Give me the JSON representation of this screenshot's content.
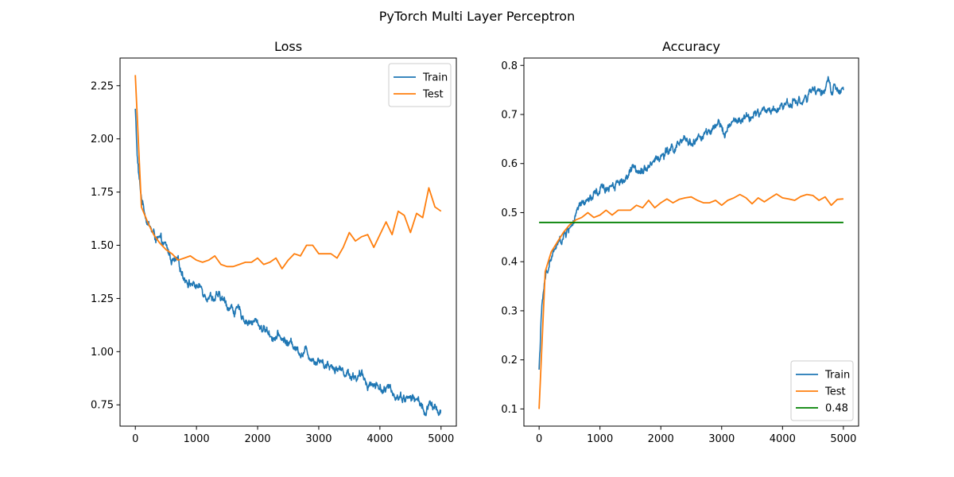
{
  "figure": {
    "suptitle": "PyTorch Multi Layer Perceptron"
  },
  "chart_data": [
    {
      "type": "line",
      "title": "Loss",
      "xlabel": "",
      "ylabel": "",
      "xlim": [
        -250,
        5250
      ],
      "ylim": [
        0.65,
        2.38
      ],
      "xticks": [
        0,
        1000,
        2000,
        3000,
        4000,
        5000
      ],
      "yticks": [
        0.75,
        1.0,
        1.25,
        1.5,
        1.75,
        2.0,
        2.25
      ],
      "ytick_decimals": 2,
      "grid": false,
      "legend": "top-right",
      "series": [
        {
          "name": "Train",
          "color": "#1f77b4",
          "noisy": true,
          "x": [
            0,
            25,
            50,
            75,
            100,
            150,
            200,
            250,
            300,
            400,
            500,
            600,
            700,
            800,
            900,
            1000,
            1100,
            1200,
            1300,
            1400,
            1500,
            1600,
            1700,
            1800,
            1900,
            2000,
            2100,
            2200,
            2300,
            2400,
            2500,
            2600,
            2700,
            2800,
            2900,
            3000,
            3100,
            3200,
            3300,
            3400,
            3500,
            3600,
            3700,
            3800,
            3900,
            4000,
            4100,
            4200,
            4300,
            4400,
            4500,
            4600,
            4700,
            4750,
            4800,
            4900,
            5000
          ],
          "y": [
            2.14,
            1.95,
            1.84,
            1.77,
            1.72,
            1.67,
            1.62,
            1.58,
            1.55,
            1.51,
            1.48,
            1.43,
            1.4,
            1.36,
            1.33,
            1.31,
            1.29,
            1.28,
            1.26,
            1.24,
            1.22,
            1.2,
            1.18,
            1.16,
            1.14,
            1.13,
            1.11,
            1.09,
            1.07,
            1.06,
            1.04,
            1.03,
            1.01,
            1.0,
            0.98,
            0.97,
            0.95,
            0.94,
            0.93,
            0.91,
            0.9,
            0.89,
            0.88,
            0.86,
            0.85,
            0.84,
            0.82,
            0.81,
            0.8,
            0.79,
            0.78,
            0.77,
            0.75,
            0.69,
            0.75,
            0.73,
            0.73
          ]
        },
        {
          "name": "Test",
          "color": "#ff7f0e",
          "noisy": false,
          "x": [
            0,
            100,
            200,
            300,
            400,
            500,
            600,
            700,
            800,
            900,
            1000,
            1100,
            1200,
            1300,
            1400,
            1500,
            1600,
            1700,
            1800,
            1900,
            2000,
            2100,
            2200,
            2300,
            2400,
            2500,
            2600,
            2700,
            2800,
            2900,
            3000,
            3100,
            3200,
            3300,
            3400,
            3500,
            3600,
            3700,
            3800,
            3900,
            4000,
            4100,
            4200,
            4300,
            4400,
            4500,
            4600,
            4700,
            4800,
            4900,
            5000
          ],
          "y": [
            2.3,
            1.68,
            1.61,
            1.55,
            1.51,
            1.48,
            1.46,
            1.43,
            1.44,
            1.45,
            1.43,
            1.42,
            1.43,
            1.45,
            1.41,
            1.4,
            1.4,
            1.41,
            1.42,
            1.42,
            1.44,
            1.41,
            1.42,
            1.44,
            1.39,
            1.43,
            1.46,
            1.45,
            1.5,
            1.5,
            1.46,
            1.46,
            1.46,
            1.44,
            1.49,
            1.56,
            1.52,
            1.54,
            1.55,
            1.49,
            1.55,
            1.61,
            1.55,
            1.66,
            1.64,
            1.56,
            1.65,
            1.63,
            1.77,
            1.68,
            1.66
          ]
        }
      ]
    },
    {
      "type": "line",
      "title": "Accuracy",
      "xlabel": "",
      "ylabel": "",
      "xlim": [
        -250,
        5250
      ],
      "ylim": [
        0.065,
        0.815
      ],
      "xticks": [
        0,
        1000,
        2000,
        3000,
        4000,
        5000
      ],
      "yticks": [
        0.1,
        0.2,
        0.3,
        0.4,
        0.5,
        0.6,
        0.7,
        0.8
      ],
      "ytick_decimals": 1,
      "grid": false,
      "legend": "bottom-right",
      "series": [
        {
          "name": "Train",
          "color": "#1f77b4",
          "noisy": true,
          "x": [
            0,
            25,
            50,
            75,
            100,
            150,
            200,
            250,
            300,
            400,
            500,
            600,
            700,
            800,
            900,
            1000,
            1100,
            1200,
            1300,
            1400,
            1500,
            1600,
            1700,
            1800,
            1900,
            2000,
            2100,
            2200,
            2300,
            2400,
            2500,
            2600,
            2700,
            2800,
            2900,
            3000,
            3100,
            3200,
            3300,
            3400,
            3500,
            3600,
            3700,
            3800,
            3900,
            4000,
            4100,
            4200,
            4300,
            4400,
            4500,
            4600,
            4700,
            4750,
            4800,
            4900,
            5000
          ],
          "y": [
            0.18,
            0.26,
            0.31,
            0.34,
            0.36,
            0.39,
            0.41,
            0.42,
            0.43,
            0.45,
            0.47,
            0.49,
            0.51,
            0.52,
            0.53,
            0.54,
            0.55,
            0.56,
            0.565,
            0.57,
            0.58,
            0.59,
            0.595,
            0.6,
            0.61,
            0.615,
            0.62,
            0.63,
            0.635,
            0.64,
            0.645,
            0.65,
            0.655,
            0.66,
            0.665,
            0.67,
            0.675,
            0.68,
            0.685,
            0.69,
            0.695,
            0.7,
            0.705,
            0.71,
            0.715,
            0.72,
            0.725,
            0.73,
            0.73,
            0.735,
            0.74,
            0.745,
            0.75,
            0.775,
            0.745,
            0.745,
            0.74
          ]
        },
        {
          "name": "Test",
          "color": "#ff7f0e",
          "noisy": false,
          "x": [
            0,
            100,
            200,
            300,
            400,
            500,
            600,
            700,
            800,
            900,
            1000,
            1100,
            1200,
            1300,
            1400,
            1500,
            1600,
            1700,
            1800,
            1900,
            2000,
            2100,
            2200,
            2300,
            2400,
            2500,
            2600,
            2700,
            2800,
            2900,
            3000,
            3100,
            3200,
            3300,
            3400,
            3500,
            3600,
            3700,
            3800,
            3900,
            4000,
            4100,
            4200,
            4300,
            4400,
            4500,
            4600,
            4700,
            4800,
            4900,
            5000
          ],
          "y": [
            0.1,
            0.38,
            0.42,
            0.44,
            0.46,
            0.475,
            0.485,
            0.49,
            0.5,
            0.49,
            0.495,
            0.505,
            0.495,
            0.505,
            0.505,
            0.505,
            0.515,
            0.51,
            0.525,
            0.51,
            0.52,
            0.528,
            0.52,
            0.527,
            0.53,
            0.532,
            0.525,
            0.52,
            0.52,
            0.525,
            0.515,
            0.525,
            0.53,
            0.537,
            0.53,
            0.518,
            0.53,
            0.522,
            0.53,
            0.538,
            0.53,
            0.528,
            0.525,
            0.533,
            0.537,
            0.535,
            0.525,
            0.532,
            0.515,
            0.527,
            0.528
          ]
        },
        {
          "name": "0.48",
          "color": "#008000",
          "noisy": false,
          "x": [
            0,
            5000
          ],
          "y": [
            0.48,
            0.48
          ]
        }
      ]
    }
  ]
}
